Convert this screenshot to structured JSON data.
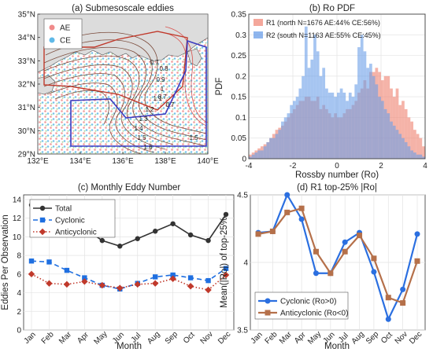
{
  "chart_data": [
    {
      "id": "a",
      "type": "map",
      "title": "(a) Submesoscale eddies",
      "x_ticks": [
        "132°E",
        "134°E",
        "136°E",
        "138°E",
        "140°E"
      ],
      "y_ticks": [
        "29°N",
        "30°N",
        "31°N",
        "32°N",
        "33°N",
        "34°N",
        "35°N"
      ],
      "xlim": [
        132,
        140
      ],
      "ylim": [
        29,
        35
      ],
      "legend": [
        {
          "name": "AE",
          "color": "#f08a8a"
        },
        {
          "name": "CE",
          "color": "#5fb9e8"
        }
      ],
      "contour_labels": [
        "0.7",
        "0.8",
        "0.9",
        "1",
        "1.1",
        "1.2",
        "1.3",
        "1.4",
        "1.5",
        "1.6",
        "0.7",
        "0.7",
        "1.5"
      ],
      "colors": {
        "land": "#dcdcdc",
        "box": "#3b3bc0",
        "red_box": "#c0392b"
      }
    },
    {
      "id": "b",
      "type": "bar",
      "title": "(b) Ro PDF",
      "xlabel": "Rossby number (Ro)",
      "ylabel": "PDF",
      "xlim": [
        -4,
        4
      ],
      "ylim": [
        0,
        0.35
      ],
      "x_ticks": [
        "-4",
        "-2",
        "0",
        "2",
        "4"
      ],
      "y_ticks": [
        "0",
        "0.05",
        "0.1",
        "0.15",
        "0.2",
        "0.25",
        "0.3",
        "0.35"
      ],
      "bin_start": -4,
      "bin_width": 0.1333,
      "series": [
        {
          "name": "R1 (north N=1676 AE:44% CE:56%)",
          "color": "#f08a7a",
          "values": [
            0.01,
            0.015,
            0.02,
            0.025,
            0.03,
            0.035,
            0.04,
            0.05,
            0.06,
            0.07,
            0.075,
            0.08,
            0.09,
            0.1,
            0.11,
            0.12,
            0.13,
            0.14,
            0.14,
            0.15,
            0.15,
            0.14,
            0.14,
            0.15,
            0.12,
            0.13,
            0.12,
            0.11,
            0.1,
            0.11,
            0.1,
            0.1,
            0.11,
            0.12,
            0.12,
            0.13,
            0.14,
            0.16,
            0.17,
            0.19,
            0.17,
            0.21,
            0.21,
            0.22,
            0.21,
            0.19,
            0.2,
            0.2,
            0.17,
            0.15,
            0.17,
            0.13,
            0.14,
            0.12,
            0.1,
            0.09,
            0.07,
            0.06,
            0.05,
            0.03
          ]
        },
        {
          "name": "R2 (south N=1163 AE:55% CE:45%)",
          "color": "#6a9ee8",
          "values": [
            0.005,
            0.01,
            0.015,
            0.02,
            0.02,
            0.03,
            0.04,
            0.05,
            0.05,
            0.06,
            0.07,
            0.09,
            0.1,
            0.11,
            0.13,
            0.14,
            0.15,
            0.17,
            0.2,
            0.32,
            0.22,
            0.24,
            0.3,
            0.26,
            0.2,
            0.22,
            0.17,
            0.16,
            0.16,
            0.15,
            0.16,
            0.17,
            0.16,
            0.14,
            0.16,
            0.15,
            0.18,
            0.27,
            0.3,
            0.26,
            0.22,
            0.23,
            0.2,
            0.18,
            0.15,
            0.14,
            0.12,
            0.11,
            0.09,
            0.08,
            0.07,
            0.06,
            0.05,
            0.04,
            0.03,
            0.02,
            0.015,
            0.01,
            0.01,
            0.005
          ]
        }
      ]
    },
    {
      "id": "c",
      "type": "line",
      "title": "(c) Monthly Eddy Number",
      "xlabel": "Month",
      "ylabel": "Eddies Per Observation",
      "categories": [
        "Jan",
        "Feb",
        "Mar",
        "Apr",
        "May",
        "Jun",
        "Jul",
        "Aug",
        "Sep",
        "Oct",
        "Nov",
        "Dec"
      ],
      "ylim": [
        0,
        14.5
      ],
      "y_ticks": [
        "0",
        "2",
        "4",
        "6",
        "8",
        "10",
        "12",
        "14"
      ],
      "series": [
        {
          "name": "Total",
          "color": "#333333",
          "style": "solid",
          "marker": "circle",
          "values": [
            13.4,
            12.3,
            11.3,
            10.9,
            9.6,
            9.0,
            9.8,
            10.6,
            11.4,
            10.2,
            9.6,
            12.4
          ]
        },
        {
          "name": "Cyclonic",
          "color": "#1f6fe0",
          "style": "dash",
          "marker": "square",
          "values": [
            7.4,
            7.3,
            6.4,
            5.6,
            4.8,
            4.4,
            5.0,
            5.7,
            5.9,
            5.6,
            5.3,
            6.6
          ]
        },
        {
          "name": "Anticyclonic",
          "color": "#c0392b",
          "style": "dot",
          "marker": "diamond",
          "values": [
            6.0,
            5.0,
            4.9,
            5.2,
            4.8,
            4.5,
            4.9,
            5.0,
            5.5,
            4.7,
            4.3,
            5.9
          ]
        }
      ]
    },
    {
      "id": "d",
      "type": "line",
      "title": "(d) R1 top-25% |Ro|",
      "xlabel": "Month",
      "ylabel": "Mean(|Ro|) of top-25%",
      "categories": [
        "Jan",
        "Feb",
        "Mar",
        "Apr",
        "May",
        "Jun",
        "Jul",
        "Aug",
        "Sep",
        "Oct",
        "Nov",
        "Dec"
      ],
      "ylim": [
        3.5,
        4.5
      ],
      "y_ticks": [
        "3.5",
        "4",
        "4.5"
      ],
      "series": [
        {
          "name": "Cyclonic (Ro>0)",
          "color": "#2b6fe0",
          "marker": "circle",
          "values": [
            4.22,
            4.23,
            4.5,
            4.32,
            3.92,
            3.92,
            4.15,
            4.22,
            3.93,
            3.58,
            3.8,
            4.21
          ]
        },
        {
          "name": "Anticyclonic (Ro<0)",
          "color": "#b5704a",
          "marker": "square",
          "values": [
            4.21,
            4.23,
            4.37,
            4.4,
            4.08,
            3.92,
            4.08,
            4.2,
            4.03,
            3.74,
            3.7,
            4.01
          ]
        }
      ]
    }
  ]
}
